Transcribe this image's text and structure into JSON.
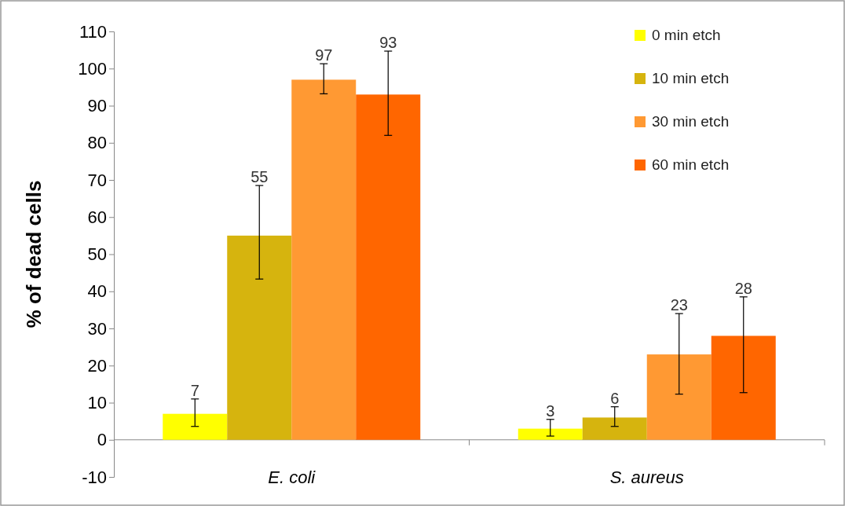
{
  "chart_data": {
    "type": "bar",
    "ylabel": "% of dead cells",
    "categories": [
      "E. coli",
      "S. aureus"
    ],
    "ylim": [
      -10,
      110
    ],
    "yticks": [
      -10,
      0,
      10,
      20,
      30,
      40,
      50,
      60,
      70,
      80,
      90,
      100,
      110
    ],
    "grid": false,
    "legend": "top right",
    "data_labels": true,
    "series": [
      {
        "name": "0 min etch",
        "color": "#ffff00",
        "values": [
          7,
          3
        ],
        "errors": [
          [
            3.6,
            11
          ],
          [
            1,
            5.5
          ]
        ]
      },
      {
        "name": "10 min etch",
        "color": "#d6b40e",
        "values": [
          55,
          6
        ],
        "errors": [
          [
            43.3,
            68.5
          ],
          [
            3.6,
            8.9
          ]
        ]
      },
      {
        "name": "30 min etch",
        "color": "#ff9933",
        "values": [
          97,
          23
        ],
        "errors": [
          [
            93.2,
            101.3
          ],
          [
            12.3,
            34
          ]
        ]
      },
      {
        "name": "60 min etch",
        "color": "#ff6600",
        "values": [
          93,
          28
        ],
        "errors": [
          [
            82,
            104.7
          ],
          [
            12.7,
            38.5
          ]
        ]
      }
    ]
  }
}
